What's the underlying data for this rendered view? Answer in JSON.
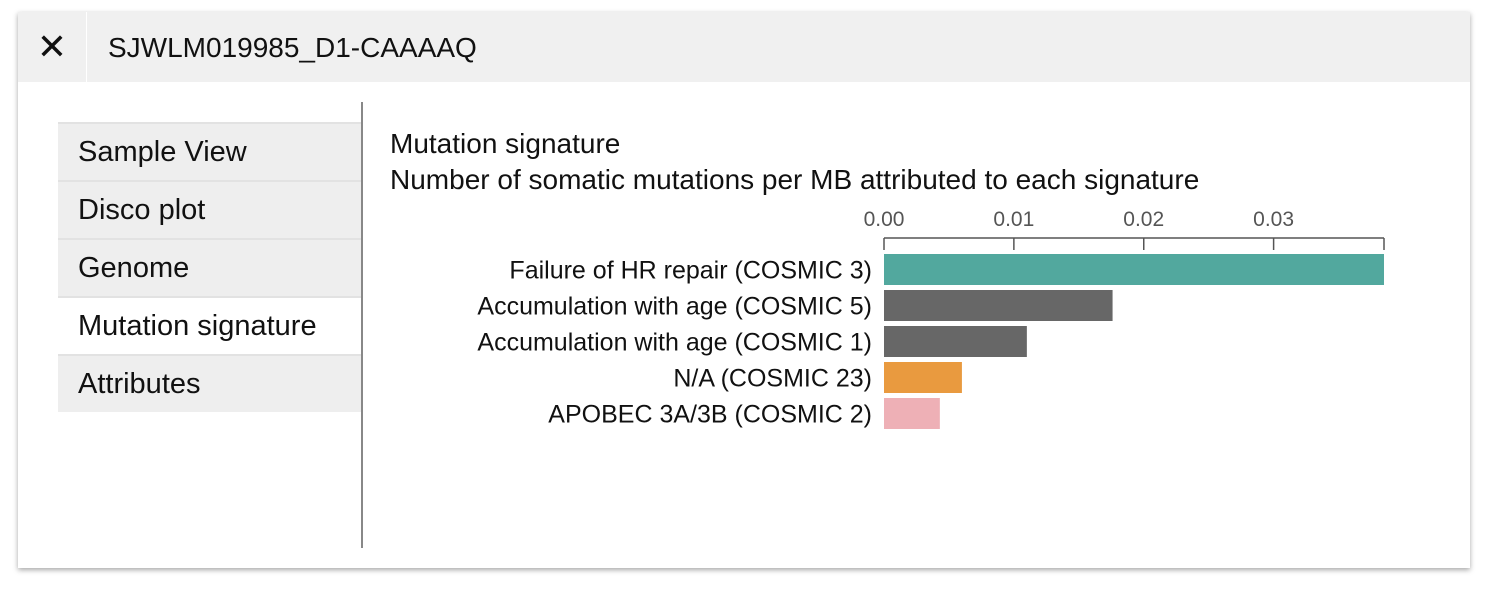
{
  "header": {
    "close_icon": "close-icon",
    "title": "SJWLM019985_D1-CAAAAQ"
  },
  "nav": {
    "items": [
      {
        "label": "Sample View",
        "active": false
      },
      {
        "label": "Disco plot",
        "active": false
      },
      {
        "label": "Genome",
        "active": false
      },
      {
        "label": "Mutation signature",
        "active": true
      },
      {
        "label": "Attributes",
        "active": false
      }
    ]
  },
  "main": {
    "title": "Mutation signature",
    "subtitle": "Number of somatic mutations per MB attributed to each signature"
  },
  "chart_data": {
    "type": "bar",
    "orientation": "horizontal",
    "title": "Mutation signature",
    "subtitle": "Number of somatic mutations per MB attributed to each signature",
    "xlim": [
      0,
      0.0385
    ],
    "xticks": [
      {
        "value": 0,
        "label": "0.00"
      },
      {
        "value": 0.01,
        "label": "0.01"
      },
      {
        "value": 0.02,
        "label": "0.02"
      },
      {
        "value": 0.03,
        "label": "0.03"
      }
    ],
    "categories": [
      "Failure of HR repair (COSMIC 3)",
      "Accumulation with age (COSMIC 5)",
      "Accumulation with age (COSMIC 1)",
      "N/A (COSMIC 23)",
      "APOBEC 3A/3B (COSMIC 2)"
    ],
    "values": [
      0.0385,
      0.0176,
      0.011,
      0.006,
      0.0043
    ],
    "colors": [
      "#52a89e",
      "#676767",
      "#676767",
      "#e99a3f",
      "#eeb0b6"
    ]
  }
}
